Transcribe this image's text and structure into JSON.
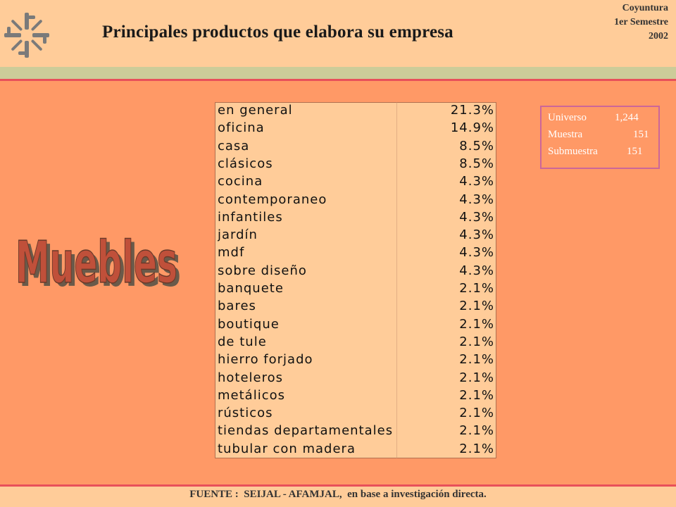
{
  "header": {
    "title": "Principales productos que elabora su empresa",
    "edition": {
      "line1": "Coyuntura",
      "line2": "1er Semestre",
      "line3": "2002"
    }
  },
  "category": "Muebles",
  "products": [
    {
      "label": "en general",
      "value": "21.3%"
    },
    {
      "label": "oficina",
      "value": "14.9%"
    },
    {
      "label": "casa",
      "value": "8.5%"
    },
    {
      "label": "clásicos",
      "value": "8.5%"
    },
    {
      "label": "cocina",
      "value": "4.3%"
    },
    {
      "label": "contemporaneo",
      "value": "4.3%"
    },
    {
      "label": "infantiles",
      "value": "4.3%"
    },
    {
      "label": "jardín",
      "value": "4.3%"
    },
    {
      "label": "mdf",
      "value": "4.3%"
    },
    {
      "label": "sobre diseño",
      "value": "4.3%"
    },
    {
      "label": "banquete",
      "value": "2.1%"
    },
    {
      "label": "bares",
      "value": "2.1%"
    },
    {
      "label": "boutique",
      "value": "2.1%"
    },
    {
      "label": "de tule",
      "value": "2.1%"
    },
    {
      "label": "hierro forjado",
      "value": "2.1%"
    },
    {
      "label": "hoteleros",
      "value": "2.1%"
    },
    {
      "label": "metálicos",
      "value": "2.1%"
    },
    {
      "label": "rústicos",
      "value": "2.1%"
    },
    {
      "label": "tiendas departamentales",
      "value": "2.1%"
    },
    {
      "label": "tubular con madera",
      "value": "2.1%"
    }
  ],
  "sample": {
    "universo_label": "Universo",
    "universo_value": "1,244",
    "muestra_label": "Muestra",
    "muestra_value": "151",
    "submuestra_label": "Submuestra",
    "submuestra_value": "151"
  },
  "footer": {
    "text": "FUENTE :  SEIJAL - AFAMJAL,  en base a investigación directa."
  },
  "colors": {
    "background": "#FF9966",
    "header": "#FFCC99",
    "accent_line": "#E8505A",
    "green_band": "#CCCC99",
    "logo": "#7a7a7a",
    "word_fill": "#C0503A",
    "word_outline": "#6a5a4a"
  },
  "icons": {
    "logo": "seijal-logo-icon"
  }
}
